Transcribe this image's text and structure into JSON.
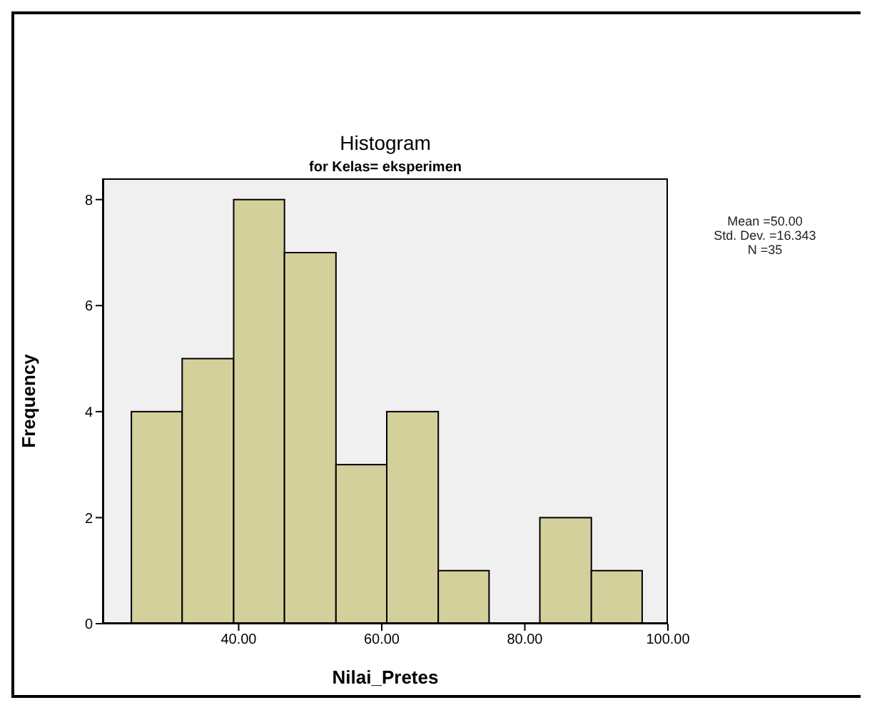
{
  "chart_data": {
    "type": "histogram",
    "title": "Histogram",
    "subtitle": "for Kelas= eksperimen",
    "xlabel": "Nilai_Pretes",
    "ylabel": "Frequency",
    "bins": [
      25,
      32.1,
      39.3,
      46.4,
      53.6,
      60.7,
      67.9,
      75,
      82.1,
      89.3,
      96.4
    ],
    "values": [
      4,
      5,
      8,
      7,
      3,
      4,
      1,
      0,
      2,
      1
    ],
    "color": "#d4d09c",
    "xlim": [
      21,
      100
    ],
    "xticks": [
      {
        "value": 40,
        "label": "40.00"
      },
      {
        "value": 60,
        "label": "60.00"
      },
      {
        "value": 80,
        "label": "80.00"
      },
      {
        "value": 100,
        "label": "100.00"
      }
    ],
    "ylim": [
      0,
      8.4
    ],
    "yticks": [
      0,
      2,
      4,
      6,
      8
    ],
    "annotations": [
      "Mean =50.00",
      "Std. Dev. =16.343",
      "N =35"
    ]
  }
}
